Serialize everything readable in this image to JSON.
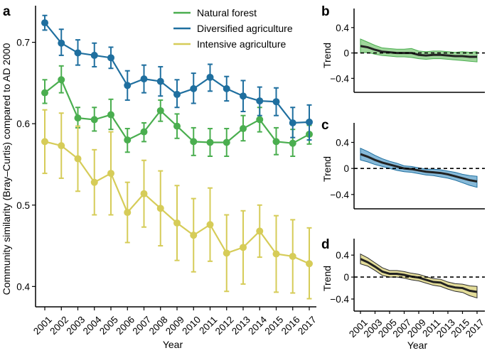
{
  "chart_data": [
    {
      "panel": "a",
      "type": "line",
      "xlabel": "Year",
      "ylabel": "Community similarity (Bray–Curtis) compared to AD 2000",
      "ylim": [
        0.375,
        0.745
      ],
      "yticks": [
        0.4,
        0.5,
        0.6,
        0.7
      ],
      "ytick_labels": [
        "0.4",
        "0.5",
        "0.6",
        "0.7"
      ],
      "categories": [
        "2001",
        "2002",
        "2003",
        "2004",
        "2005",
        "2006",
        "2007",
        "2008",
        "2009",
        "2010",
        "2011",
        "2012",
        "2013",
        "2014",
        "2015",
        "2016",
        "2017"
      ],
      "series": [
        {
          "name": "Natural forest",
          "color": "#4aae4f",
          "values": [
            0.638,
            0.654,
            0.607,
            0.605,
            0.611,
            0.58,
            0.59,
            0.616,
            0.597,
            0.578,
            0.577,
            0.577,
            0.594,
            0.605,
            0.578,
            0.576,
            0.587
          ],
          "lower": [
            0.625,
            0.638,
            0.595,
            0.591,
            0.593,
            0.565,
            0.578,
            0.603,
            0.582,
            0.561,
            0.56,
            0.56,
            0.579,
            0.59,
            0.562,
            0.56,
            0.575
          ],
          "upper": [
            0.654,
            0.671,
            0.62,
            0.62,
            0.63,
            0.594,
            0.601,
            0.629,
            0.612,
            0.595,
            0.594,
            0.594,
            0.61,
            0.62,
            0.595,
            0.593,
            0.598
          ]
        },
        {
          "name": "Diversified agriculture",
          "color": "#1f6f9f",
          "values": [
            0.724,
            0.699,
            0.687,
            0.684,
            0.681,
            0.647,
            0.655,
            0.652,
            0.636,
            0.643,
            0.657,
            0.643,
            0.634,
            0.628,
            0.627,
            0.601,
            0.602
          ],
          "lower": [
            0.715,
            0.684,
            0.672,
            0.67,
            0.668,
            0.629,
            0.638,
            0.634,
            0.62,
            0.625,
            0.64,
            0.628,
            0.615,
            0.61,
            0.61,
            0.583,
            0.58
          ],
          "upper": [
            0.733,
            0.716,
            0.703,
            0.699,
            0.694,
            0.665,
            0.672,
            0.67,
            0.654,
            0.662,
            0.673,
            0.658,
            0.653,
            0.645,
            0.644,
            0.62,
            0.623
          ]
        },
        {
          "name": "Intensive agriculture",
          "color": "#d6cc58",
          "values": [
            0.578,
            0.573,
            0.557,
            0.528,
            0.539,
            0.491,
            0.514,
            0.496,
            0.478,
            0.463,
            0.476,
            0.441,
            0.448,
            0.468,
            0.44,
            0.437,
            0.428
          ],
          "lower": [
            0.539,
            0.533,
            0.517,
            0.488,
            0.488,
            0.454,
            0.473,
            0.45,
            0.432,
            0.418,
            0.431,
            0.394,
            0.403,
            0.436,
            0.393,
            0.392,
            0.385
          ],
          "upper": [
            0.617,
            0.613,
            0.597,
            0.568,
            0.59,
            0.528,
            0.555,
            0.542,
            0.524,
            0.508,
            0.521,
            0.488,
            0.493,
            0.5,
            0.487,
            0.482,
            0.472
          ]
        }
      ],
      "legend": [
        "Natural forest",
        "Diversified agriculture",
        "Intensive agriculture"
      ],
      "legend_position": "top-right"
    },
    {
      "panel": "b",
      "type": "area",
      "ylabel": "Trend",
      "xlim": [
        2001,
        2017
      ],
      "ylim": [
        -0.62,
        0.7
      ],
      "yticks": [
        -0.4,
        0,
        0.4
      ],
      "ytick_labels": [
        "−0.4",
        "0",
        "0.4"
      ],
      "color": "#4aae4f",
      "fill": "#9fd69b",
      "x": [
        2001,
        2002,
        2003,
        2004,
        2005,
        2006,
        2007,
        2008,
        2009,
        2010,
        2011,
        2012,
        2013,
        2014,
        2015,
        2016,
        2017
      ],
      "values": [
        0.11,
        0.09,
        0.05,
        0.02,
        0.01,
        0.0,
        0.0,
        0.0,
        -0.03,
        -0.04,
        -0.03,
        -0.03,
        -0.04,
        -0.05,
        -0.05,
        -0.06,
        -0.06
      ],
      "lower": [
        0.0,
        0.01,
        -0.02,
        -0.04,
        -0.05,
        -0.06,
        -0.06,
        -0.07,
        -0.09,
        -0.1,
        -0.09,
        -0.09,
        -0.1,
        -0.11,
        -0.12,
        -0.13,
        -0.14
      ],
      "upper": [
        0.22,
        0.17,
        0.12,
        0.08,
        0.07,
        0.06,
        0.06,
        0.07,
        0.03,
        0.02,
        0.03,
        0.03,
        0.02,
        0.01,
        0.02,
        0.01,
        0.02
      ],
      "reference_line": 0
    },
    {
      "panel": "c",
      "type": "area",
      "ylabel": "Trend",
      "xlim": [
        2001,
        2017
      ],
      "ylim": [
        -0.62,
        0.7
      ],
      "yticks": [
        -0.4,
        0,
        0.4
      ],
      "ytick_labels": [
        "−0.4",
        "0",
        "0.4"
      ],
      "color": "#1f6f9f",
      "fill": "#86b9d8",
      "x": [
        2001,
        2002,
        2003,
        2004,
        2005,
        2006,
        2007,
        2008,
        2009,
        2010,
        2011,
        2012,
        2013,
        2014,
        2015,
        2016,
        2017
      ],
      "values": [
        0.22,
        0.18,
        0.13,
        0.09,
        0.06,
        0.03,
        0.0,
        -0.01,
        -0.03,
        -0.05,
        -0.06,
        -0.07,
        -0.09,
        -0.12,
        -0.15,
        -0.18,
        -0.2
      ],
      "lower": [
        0.13,
        0.1,
        0.06,
        0.03,
        0.0,
        -0.03,
        -0.05,
        -0.06,
        -0.08,
        -0.1,
        -0.11,
        -0.13,
        -0.15,
        -0.18,
        -0.22,
        -0.26,
        -0.29
      ],
      "upper": [
        0.31,
        0.26,
        0.2,
        0.15,
        0.11,
        0.08,
        0.04,
        0.03,
        0.01,
        -0.01,
        -0.01,
        -0.02,
        -0.04,
        -0.06,
        -0.09,
        -0.11,
        -0.12
      ],
      "reference_line": 0
    },
    {
      "panel": "d",
      "type": "area",
      "ylabel": "Trend",
      "xlim": [
        2001,
        2017
      ],
      "ylim": [
        -0.62,
        0.7
      ],
      "yticks": [
        -0.4,
        0,
        0.4
      ],
      "ytick_labels": [
        "−0.4",
        "0",
        "0.4"
      ],
      "color": "#2c2c2c",
      "fill": "#e3dc99",
      "x": [
        2001,
        2002,
        2003,
        2004,
        2005,
        2006,
        2007,
        2008,
        2009,
        2010,
        2011,
        2012,
        2013,
        2014,
        2015,
        2016,
        2017
      ],
      "values": [
        0.33,
        0.27,
        0.19,
        0.1,
        0.06,
        0.06,
        0.04,
        0.01,
        -0.01,
        -0.05,
        -0.09,
        -0.1,
        -0.16,
        -0.19,
        -0.2,
        -0.25,
        -0.27
      ],
      "lower": [
        0.24,
        0.2,
        0.12,
        0.03,
        0.0,
        0.0,
        -0.02,
        -0.05,
        -0.07,
        -0.11,
        -0.15,
        -0.17,
        -0.22,
        -0.26,
        -0.28,
        -0.34,
        -0.38
      ],
      "upper": [
        0.42,
        0.35,
        0.26,
        0.17,
        0.12,
        0.12,
        0.1,
        0.07,
        0.05,
        0.01,
        -0.03,
        -0.04,
        -0.09,
        -0.12,
        -0.13,
        -0.16,
        -0.17
      ],
      "reference_line": 0,
      "xticks": [
        2001,
        2003,
        2005,
        2007,
        2009,
        2011,
        2013,
        2015,
        2017
      ],
      "xtick_labels": [
        "2001",
        "2003",
        "2005",
        "2007",
        "2009",
        "2011",
        "2013",
        "2015",
        "2017"
      ],
      "xlabel": "Year"
    }
  ]
}
